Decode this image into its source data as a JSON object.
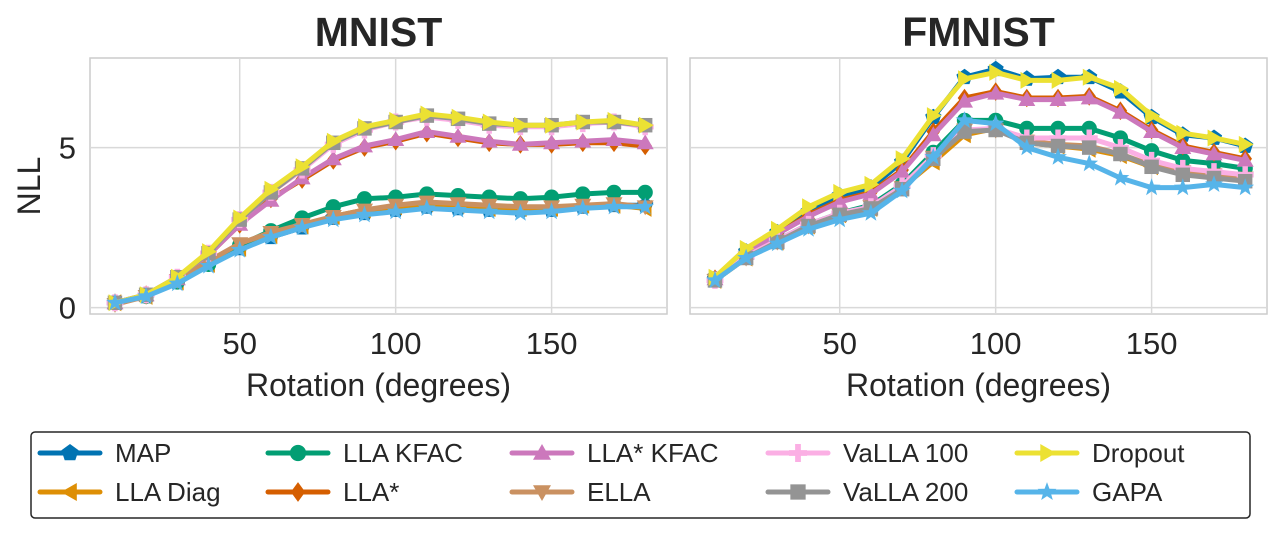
{
  "chart_data": {
    "type": "line",
    "x": [
      10,
      20,
      30,
      40,
      50,
      60,
      70,
      80,
      90,
      100,
      110,
      120,
      130,
      140,
      150,
      160,
      170,
      180
    ],
    "xlabel": "Rotation (degrees)",
    "ylabel": "NLL",
    "xlim": [
      2,
      187
    ],
    "ylim": [
      -0.2,
      7.8
    ],
    "xticks": [
      50,
      100,
      150
    ],
    "yticks": [
      0,
      5
    ],
    "grid": true,
    "legend_placement": "bottom",
    "panels": [
      {
        "title": "MNIST",
        "show_ylabel": true,
        "series": [
          {
            "name": "MAP",
            "values": [
              0.15,
              0.35,
              0.8,
              1.35,
              1.85,
              2.2,
              2.5,
              2.8,
              2.95,
              3.05,
              3.15,
              3.1,
              3.05,
              3.05,
              3.05,
              3.15,
              3.2,
              3.2
            ]
          },
          {
            "name": "LLA Diag",
            "values": [
              0.15,
              0.35,
              0.8,
              1.35,
              1.85,
              2.25,
              2.55,
              2.85,
              3.05,
              3.15,
              3.25,
              3.2,
              3.1,
              3.1,
              3.1,
              3.2,
              3.2,
              3.1
            ]
          },
          {
            "name": "LLA KFAC",
            "values": [
              0.15,
              0.35,
              0.8,
              1.35,
              1.95,
              2.4,
              2.8,
              3.15,
              3.4,
              3.45,
              3.55,
              3.5,
              3.45,
              3.4,
              3.45,
              3.55,
              3.6,
              3.6
            ]
          },
          {
            "name": "LLA*",
            "values": [
              0.15,
              0.4,
              0.9,
              1.65,
              2.6,
              3.4,
              4.0,
              4.6,
              5.0,
              5.2,
              5.45,
              5.3,
              5.15,
              5.1,
              5.1,
              5.15,
              5.15,
              5.05
            ]
          },
          {
            "name": "LLA* KFAC",
            "values": [
              0.15,
              0.4,
              0.9,
              1.65,
              2.6,
              3.35,
              4.05,
              4.65,
              5.05,
              5.25,
              5.5,
              5.35,
              5.2,
              5.1,
              5.15,
              5.2,
              5.25,
              5.15
            ]
          },
          {
            "name": "ELLA",
            "values": [
              0.1,
              0.35,
              0.85,
              1.45,
              2.0,
              2.35,
              2.6,
              2.85,
              3.05,
              3.2,
              3.3,
              3.25,
              3.2,
              3.15,
              3.15,
              3.2,
              3.25,
              3.15
            ]
          },
          {
            "name": "VaLLA 100",
            "values": [
              0.15,
              0.4,
              0.95,
              1.7,
              2.75,
              3.6,
              4.3,
              5.1,
              5.55,
              5.8,
              5.95,
              5.85,
              5.7,
              5.65,
              5.65,
              5.75,
              5.8,
              5.65
            ]
          },
          {
            "name": "VaLLA 200",
            "values": [
              0.15,
              0.4,
              0.95,
              1.7,
              2.75,
              3.6,
              4.35,
              5.15,
              5.6,
              5.8,
              6.0,
              5.9,
              5.75,
              5.7,
              5.7,
              5.8,
              5.8,
              5.7
            ]
          },
          {
            "name": "Dropout",
            "values": [
              0.15,
              0.4,
              0.95,
              1.75,
              2.8,
              3.7,
              4.4,
              5.2,
              5.65,
              5.85,
              6.05,
              5.95,
              5.8,
              5.7,
              5.7,
              5.8,
              5.85,
              5.7
            ]
          },
          {
            "name": "GAPA",
            "values": [
              0.15,
              0.35,
              0.75,
              1.3,
              1.8,
              2.2,
              2.5,
              2.75,
              2.9,
              3.0,
              3.1,
              3.05,
              3.0,
              2.95,
              3.0,
              3.1,
              3.15,
              3.15
            ]
          }
        ]
      },
      {
        "title": "FMNIST",
        "show_ylabel": false,
        "series": [
          {
            "name": "MAP",
            "values": [
              0.9,
              1.75,
              2.35,
              3.0,
              3.5,
              3.75,
              4.55,
              5.95,
              7.2,
              7.45,
              7.15,
              7.2,
              7.2,
              6.75,
              5.95,
              5.4,
              5.3,
              5.05
            ]
          },
          {
            "name": "LLA Diag",
            "values": [
              0.85,
              1.55,
              2.05,
              2.55,
              2.9,
              3.1,
              3.75,
              4.55,
              5.4,
              5.6,
              5.15,
              5.05,
              4.95,
              4.75,
              4.4,
              4.25,
              4.15,
              4.1
            ]
          },
          {
            "name": "LLA KFAC",
            "values": [
              0.85,
              1.6,
              2.1,
              2.6,
              2.95,
              3.2,
              3.85,
              4.85,
              5.85,
              5.85,
              5.6,
              5.6,
              5.6,
              5.3,
              4.9,
              4.6,
              4.5,
              4.35
            ]
          },
          {
            "name": "LLA*",
            "values": [
              0.9,
              1.7,
              2.3,
              2.9,
              3.35,
              3.6,
              4.3,
              5.5,
              6.55,
              6.75,
              6.55,
              6.55,
              6.6,
              6.15,
              5.55,
              5.05,
              4.85,
              4.65
            ]
          },
          {
            "name": "LLA* KFAC",
            "values": [
              0.9,
              1.7,
              2.3,
              2.85,
              3.3,
              3.55,
              4.25,
              5.4,
              6.45,
              6.7,
              6.5,
              6.5,
              6.55,
              6.1,
              5.5,
              5.0,
              4.8,
              4.6
            ]
          },
          {
            "name": "ELLA",
            "values": [
              0.85,
              1.55,
              2.05,
              2.55,
              2.9,
              3.15,
              3.75,
              4.7,
              5.55,
              5.55,
              5.2,
              5.1,
              5.05,
              4.8,
              4.45,
              4.25,
              4.15,
              4.05
            ]
          },
          {
            "name": "VaLLA 100",
            "values": [
              0.85,
              1.6,
              2.1,
              2.6,
              2.95,
              3.15,
              3.8,
              4.75,
              5.55,
              5.6,
              5.3,
              5.3,
              5.3,
              5.0,
              4.6,
              4.35,
              4.25,
              4.15
            ]
          },
          {
            "name": "VaLLA 200",
            "values": [
              0.85,
              1.55,
              2.05,
              2.55,
              2.9,
              3.1,
              3.7,
              4.65,
              5.5,
              5.55,
              5.15,
              5.05,
              5.0,
              4.8,
              4.4,
              4.15,
              4.05,
              3.95
            ]
          },
          {
            "name": "Dropout",
            "values": [
              0.95,
              1.85,
              2.45,
              3.15,
              3.6,
              3.85,
              4.65,
              6.0,
              7.15,
              7.35,
              7.1,
              7.1,
              7.2,
              6.85,
              6.0,
              5.45,
              5.3,
              5.1
            ]
          },
          {
            "name": "GAPA",
            "values": [
              0.85,
              1.55,
              2.0,
              2.45,
              2.75,
              2.95,
              3.65,
              4.7,
              5.85,
              5.75,
              5.0,
              4.7,
              4.5,
              4.05,
              3.75,
              3.75,
              3.85,
              3.75
            ]
          }
        ]
      }
    ]
  },
  "legend": [
    {
      "name": "MAP",
      "color": "#0173b2",
      "marker": "pentagon-icon"
    },
    {
      "name": "LLA Diag",
      "color": "#de8f05",
      "marker": "triangle-left-icon"
    },
    {
      "name": "LLA KFAC",
      "color": "#029e73",
      "marker": "circle-icon"
    },
    {
      "name": "LLA*",
      "color": "#d55e00",
      "marker": "diamond-icon"
    },
    {
      "name": "LLA* KFAC",
      "color": "#cc78bc",
      "marker": "triangle-up-icon"
    },
    {
      "name": "ELLA",
      "color": "#ca9161",
      "marker": "triangle-down-icon"
    },
    {
      "name": "VaLLA 100",
      "color": "#fbafe4",
      "marker": "plus-icon"
    },
    {
      "name": "VaLLA 200",
      "color": "#949494",
      "marker": "square-icon"
    },
    {
      "name": "Dropout",
      "color": "#ece133",
      "marker": "triangle-right-icon"
    },
    {
      "name": "GAPA",
      "color": "#56b4e9",
      "marker": "star-icon"
    }
  ]
}
